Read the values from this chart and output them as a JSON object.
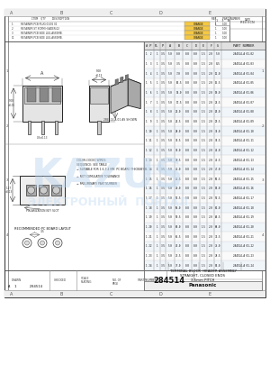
{
  "bg_color": "#ffffff",
  "page_bg": "#ffffff",
  "sheet_bg": "#ffffff",
  "line_color": "#444444",
  "watermark_color": "#b8d4ee",
  "watermark_color2": "#c8dff5",
  "title_text": "TERMINAL BLOCK  HEADER ASSEMBLY\nSTRAIGHT, CLOSED ENDS\n3.5mm PITCH",
  "part_number": "284514",
  "company": "Panasonic",
  "col_headers": [
    "# P",
    "PL",
    "P",
    "A",
    "B",
    "C",
    "D",
    "E",
    "F",
    "G",
    "PART NUMBER"
  ],
  "table_rows": [
    [
      "1  2",
      "1",
      "3.5",
      "5.0",
      "0.0",
      "0.8",
      "0.0",
      "1.5",
      "2.0",
      "5.0",
      "284514-A 01-02"
    ],
    [
      "1  3",
      "1",
      "3.5",
      "5.0",
      "3.5",
      "0.8",
      "0.0",
      "1.5",
      "2.0",
      "8.5",
      "284514-A 01-03"
    ],
    [
      "1  4",
      "1",
      "3.5",
      "5.0",
      "7.0",
      "0.8",
      "0.0",
      "1.5",
      "2.0",
      "12.0",
      "284514-A 01-04"
    ],
    [
      "1  5",
      "1",
      "3.5",
      "5.0",
      "10.5",
      "0.8",
      "0.0",
      "1.5",
      "2.0",
      "15.5",
      "284514-A 01-05"
    ],
    [
      "1  6",
      "1",
      "3.5",
      "5.0",
      "14.0",
      "0.8",
      "0.0",
      "1.5",
      "2.0",
      "19.0",
      "284514-A 01-06"
    ],
    [
      "1  7",
      "1",
      "3.5",
      "5.0",
      "17.5",
      "0.8",
      "0.0",
      "1.5",
      "2.0",
      "22.5",
      "284514-A 01-07"
    ],
    [
      "1  8",
      "1",
      "3.5",
      "5.0",
      "21.0",
      "0.8",
      "0.0",
      "1.5",
      "2.0",
      "26.0",
      "284514-A 01-08"
    ],
    [
      "1  9",
      "1",
      "3.5",
      "5.0",
      "24.5",
      "0.8",
      "0.0",
      "1.5",
      "2.0",
      "29.5",
      "284514-A 01-09"
    ],
    [
      "1 10",
      "1",
      "3.5",
      "5.0",
      "28.0",
      "0.8",
      "0.0",
      "1.5",
      "2.0",
      "33.0",
      "284514-A 01-10"
    ],
    [
      "1 11",
      "1",
      "3.5",
      "5.0",
      "31.5",
      "0.8",
      "0.0",
      "1.5",
      "2.0",
      "36.5",
      "284514-A 01-11"
    ],
    [
      "1 12",
      "1",
      "3.5",
      "5.0",
      "35.0",
      "0.8",
      "0.0",
      "1.5",
      "2.0",
      "40.0",
      "284514-A 01-12"
    ],
    [
      "1 13",
      "1",
      "3.5",
      "5.0",
      "38.5",
      "0.8",
      "0.0",
      "1.5",
      "2.0",
      "43.5",
      "284514-A 01-13"
    ],
    [
      "1 14",
      "1",
      "3.5",
      "5.0",
      "42.0",
      "0.8",
      "0.0",
      "1.5",
      "2.0",
      "47.0",
      "284514-A 01-14"
    ],
    [
      "1 15",
      "1",
      "3.5",
      "5.0",
      "45.5",
      "0.8",
      "0.0",
      "1.5",
      "2.0",
      "50.5",
      "284514-A 01-15"
    ],
    [
      "1 16",
      "1",
      "3.5",
      "5.0",
      "49.0",
      "0.8",
      "0.0",
      "1.5",
      "2.0",
      "54.0",
      "284514-A 01-16"
    ],
    [
      "1 17",
      "1",
      "3.5",
      "5.0",
      "52.5",
      "0.8",
      "0.0",
      "1.5",
      "2.0",
      "57.5",
      "284514-A 01-17"
    ],
    [
      "1 18",
      "1",
      "3.5",
      "5.0",
      "56.0",
      "0.8",
      "0.0",
      "1.5",
      "2.0",
      "61.0",
      "284514-A 01-18"
    ],
    [
      "1 19",
      "1",
      "3.5",
      "5.0",
      "59.5",
      "0.8",
      "0.0",
      "1.5",
      "2.0",
      "64.5",
      "284514-A 01-19"
    ],
    [
      "1 20",
      "1",
      "3.5",
      "5.0",
      "63.0",
      "0.8",
      "0.0",
      "1.5",
      "2.0",
      "68.0",
      "284514-A 01-20"
    ],
    [
      "1 21",
      "1",
      "3.5",
      "5.0",
      "66.5",
      "0.8",
      "0.0",
      "1.5",
      "2.0",
      "71.5",
      "284514-A 01-21"
    ],
    [
      "1 22",
      "1",
      "3.5",
      "5.0",
      "70.0",
      "0.8",
      "0.0",
      "1.5",
      "2.0",
      "75.0",
      "284514-A 01-22"
    ],
    [
      "1 23",
      "1",
      "3.5",
      "5.0",
      "73.5",
      "0.8",
      "0.0",
      "1.5",
      "2.0",
      "78.5",
      "284514-A 01-23"
    ],
    [
      "1 24",
      "1",
      "3.5",
      "5.0",
      "77.0",
      "0.8",
      "0.0",
      "1.5",
      "2.0",
      "82.0",
      "284514-A 01-24"
    ]
  ],
  "parts_list": [
    [
      "1",
      "RETAINER PCB PLUG 01/02 01",
      "ORANGE",
      "1",
      "1.00"
    ],
    [
      "2",
      "RETAINER ST SCRM HEADER-02",
      "ORANGE",
      "1",
      "1.00"
    ],
    [
      "3",
      "RETAINER PCB SIDE LUG-ASSEMB.",
      "ORANGE",
      "1",
      "1.00"
    ],
    [
      "C1",
      "RETAINER PCB SIDE LUG-ASSEMB.",
      "ORANGE",
      "1",
      "1.00"
    ]
  ]
}
